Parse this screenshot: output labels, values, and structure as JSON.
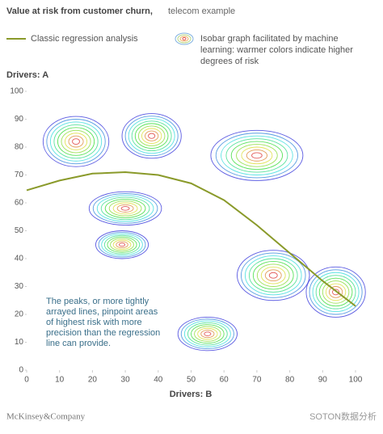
{
  "chart_data": {
    "type": "line",
    "title": "Value at risk from customer churn,",
    "subtitle": "telecom example",
    "x_label": "Drivers: B",
    "y_label": "Drivers: A",
    "xlim": [
      0,
      100
    ],
    "ylim": [
      0,
      100
    ],
    "xticks": [
      0,
      10,
      20,
      30,
      40,
      50,
      60,
      70,
      80,
      90,
      100
    ],
    "yticks": [
      0,
      10,
      20,
      30,
      40,
      50,
      60,
      70,
      80,
      90,
      100
    ],
    "x": [
      0,
      10,
      20,
      30,
      40,
      50,
      60,
      70,
      80,
      90,
      100
    ],
    "series": [
      {
        "name": "Classic regression analysis",
        "color": "#8a9a2a",
        "values": [
          64.5,
          68,
          70.5,
          71,
          70,
          67,
          61,
          52,
          42,
          32,
          23
        ]
      }
    ],
    "isobar_legend": [
      "Isobar graph facilitated by machine",
      "learning: warmer colors indicate higher",
      "degrees of risk"
    ],
    "isobar_peaks": [
      {
        "x": 15,
        "y": 82,
        "rx": 10,
        "ry": 9
      },
      {
        "x": 38,
        "y": 84,
        "rx": 9,
        "ry": 8
      },
      {
        "x": 70,
        "y": 77,
        "rx": 14,
        "ry": 9
      },
      {
        "x": 30,
        "y": 58,
        "rx": 11,
        "ry": 6
      },
      {
        "x": 29,
        "y": 45,
        "rx": 8,
        "ry": 5
      },
      {
        "x": 75,
        "y": 34,
        "rx": 11,
        "ry": 9
      },
      {
        "x": 94,
        "y": 28,
        "rx": 9,
        "ry": 9
      },
      {
        "x": 55,
        "y": 13,
        "rx": 9,
        "ry": 6
      }
    ],
    "annotation": [
      "The peaks, or more tightly",
      "arrayed lines, pinpoint areas",
      "of highest risk with more",
      "precision than the regression",
      "line can provide."
    ],
    "source": "McKinsey&Company",
    "watermark": "SOTON数据分析"
  }
}
